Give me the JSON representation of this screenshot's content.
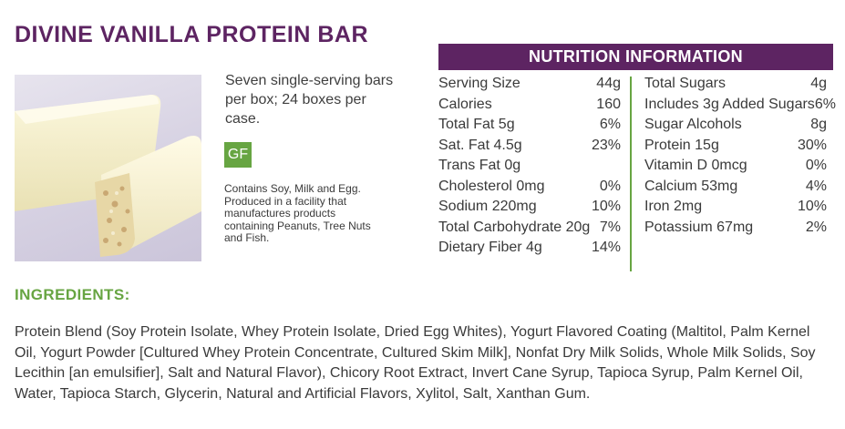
{
  "product": {
    "title": "DIVINE VANILLA PROTEIN BAR",
    "description": "Seven single-serving bars per box; 24 boxes per case.",
    "badge": "GF",
    "allergen_note": "Contains Soy, Milk and Egg. Produced in a facility that manufactures products containing Peanuts, Tree Nuts and Fish."
  },
  "nutrition": {
    "header": "NUTRITION INFORMATION",
    "left": [
      {
        "label": "Serving Size",
        "value": "44g"
      },
      {
        "label": "Calories",
        "value": "160"
      },
      {
        "label": "Total Fat 5g",
        "value": "6%"
      },
      {
        "label": "Sat. Fat 4.5g",
        "value": "23%"
      },
      {
        "label": "Trans Fat 0g",
        "value": ""
      },
      {
        "label": "Cholesterol 0mg",
        "value": "0%"
      },
      {
        "label": "Sodium 220mg",
        "value": "10%"
      },
      {
        "label": "Total Carbohydrate 20g",
        "value": "7%"
      },
      {
        "label": "Dietary Fiber 4g",
        "value": "14%"
      }
    ],
    "right": [
      {
        "label": "Total Sugars",
        "value": "4g"
      },
      {
        "label": "Includes 3g Added Sugars",
        "value": "6%"
      },
      {
        "label": "Sugar Alcohols",
        "value": "8g"
      },
      {
        "label": "Protein 15g",
        "value": "30%"
      },
      {
        "label": "Vitamin D 0mcg",
        "value": "0%"
      },
      {
        "label": "Calcium 53mg",
        "value": "4%"
      },
      {
        "label": "Iron 2mg",
        "value": "10%"
      },
      {
        "label": "Potassium 67mg",
        "value": "2%"
      }
    ]
  },
  "ingredients": {
    "title": "INGREDIENTS:",
    "text": "Protein Blend (Soy Protein Isolate, Whey Protein Isolate, Dried Egg Whites), Yogurt Flavored Coating (Maltitol, Palm Kernel Oil, Yogurt Powder [Cultured Whey Protein Concentrate, Cultured Skim Milk], Nonfat Dry Milk Solids, Whole Milk Solids, Soy Lecithin [an emulsifier], Salt and Natural Flavor), Chicory Root Extract, Invert Cane Syrup, Tapioca Syrup, Palm Kernel Oil, Water, Tapioca Starch, Glycerin, Natural and Artificial Flavors, Xylitol, Salt, Xanthan Gum."
  },
  "colors": {
    "brand_purple": "#5d2462",
    "accent_green": "#67a542"
  }
}
